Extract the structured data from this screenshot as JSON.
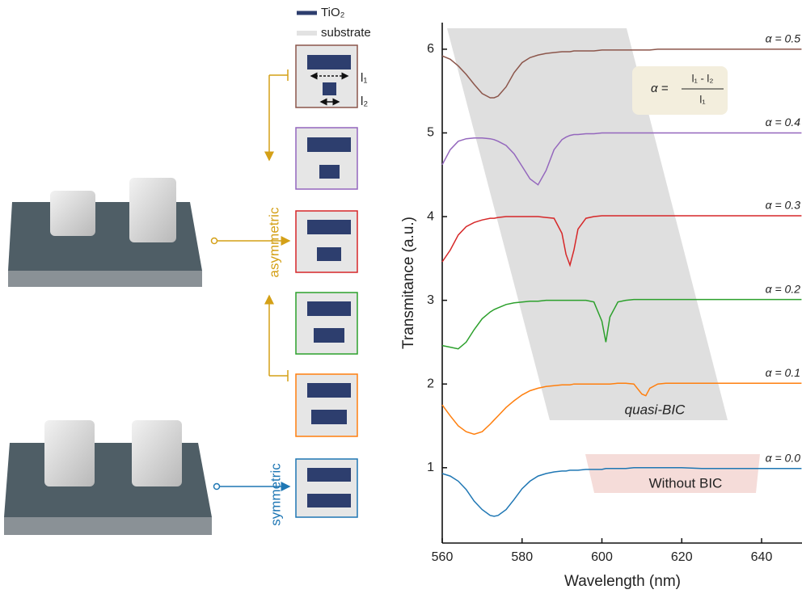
{
  "legend": {
    "tio2": "TiO₂",
    "substrate": "substrate"
  },
  "labels": {
    "asymmetric": "asymmetric",
    "symmetric": "symmetric",
    "l1": "l₁",
    "l2": "l₂"
  },
  "chart_data": {
    "type": "line",
    "x_label": "Wavelength (nm)",
    "y_label": "Transmitance (a.u.)",
    "annotations": {
      "quasi_bic": "quasi-BIC",
      "without_bic": "Without BIC",
      "formula_lhs": "α =",
      "formula_numerator": "l₁ - l₂",
      "formula_denominator": "l₁"
    },
    "xlim": [
      560,
      650
    ],
    "ylim": [
      0.1,
      6.25
    ],
    "xticks": [
      560,
      580,
      600,
      620,
      640
    ],
    "yticks": [
      1,
      2,
      3,
      4,
      5,
      6
    ],
    "x": [
      560,
      562,
      564,
      566,
      568,
      570,
      572,
      573,
      574,
      576,
      578,
      580,
      582,
      584,
      586,
      588,
      590,
      591,
      592,
      593,
      594,
      596,
      598,
      600,
      601,
      602,
      604,
      606,
      608,
      610,
      611,
      612,
      614,
      616,
      620,
      625,
      630,
      635,
      640,
      645,
      650
    ],
    "series": [
      {
        "name": "α = 0.0",
        "color": "#1f77b4",
        "values": [
          0.93,
          0.9,
          0.84,
          0.74,
          0.6,
          0.5,
          0.43,
          0.42,
          0.43,
          0.5,
          0.62,
          0.75,
          0.84,
          0.9,
          0.93,
          0.95,
          0.96,
          0.96,
          0.97,
          0.97,
          0.97,
          0.98,
          0.98,
          0.98,
          0.99,
          0.99,
          0.99,
          0.99,
          1.0,
          1.0,
          1.0,
          1.0,
          1.0,
          1.0,
          1.0,
          0.99,
          0.99,
          0.99,
          0.99,
          0.99,
          0.99
        ]
      },
      {
        "name": "α = 0.1",
        "color": "#ff7f0e",
        "values": [
          1.75,
          1.62,
          1.5,
          1.43,
          1.4,
          1.43,
          1.52,
          1.57,
          1.62,
          1.72,
          1.8,
          1.87,
          1.92,
          1.95,
          1.97,
          1.98,
          1.99,
          1.99,
          1.99,
          2.0,
          2.0,
          2.0,
          2.0,
          2.0,
          2.0,
          2.0,
          2.01,
          2.01,
          2.0,
          1.88,
          1.86,
          1.95,
          2.0,
          2.01,
          2.01,
          2.01,
          2.01,
          2.01,
          2.01,
          2.01,
          2.01
        ]
      },
      {
        "name": "α = 0.2",
        "color": "#2ca02c",
        "values": [
          2.46,
          2.44,
          2.42,
          2.5,
          2.65,
          2.78,
          2.86,
          2.89,
          2.91,
          2.95,
          2.97,
          2.98,
          2.99,
          2.99,
          3.0,
          3.0,
          3.0,
          3.0,
          3.0,
          3.0,
          3.0,
          3.0,
          2.98,
          2.75,
          2.5,
          2.8,
          2.98,
          3.0,
          3.01,
          3.01,
          3.01,
          3.01,
          3.01,
          3.01,
          3.01,
          3.01,
          3.01,
          3.01,
          3.01,
          3.01,
          3.01
        ]
      },
      {
        "name": "α = 0.3",
        "color": "#d62728",
        "values": [
          3.46,
          3.6,
          3.78,
          3.88,
          3.93,
          3.96,
          3.98,
          3.98,
          3.99,
          4.0,
          4.0,
          4.0,
          4.0,
          4.0,
          3.99,
          3.98,
          3.8,
          3.55,
          3.42,
          3.6,
          3.85,
          3.98,
          4.0,
          4.01,
          4.01,
          4.01,
          4.01,
          4.01,
          4.01,
          4.01,
          4.01,
          4.01,
          4.01,
          4.01,
          4.01,
          4.01,
          4.01,
          4.01,
          4.01,
          4.01,
          4.01
        ]
      },
      {
        "name": "α = 0.4",
        "color": "#9467bd",
        "values": [
          4.62,
          4.8,
          4.9,
          4.93,
          4.94,
          4.94,
          4.93,
          4.92,
          4.9,
          4.85,
          4.75,
          4.6,
          4.45,
          4.38,
          4.55,
          4.8,
          4.92,
          4.95,
          4.97,
          4.98,
          4.98,
          4.99,
          4.99,
          5.0,
          5.0,
          5.0,
          5.0,
          5.0,
          5.0,
          5.0,
          5.0,
          5.0,
          5.0,
          5.0,
          5.0,
          5.0,
          5.0,
          5.0,
          5.0,
          5.0,
          5.0
        ]
      },
      {
        "name": "α = 0.5",
        "color": "#8c564b",
        "values": [
          5.92,
          5.88,
          5.8,
          5.7,
          5.58,
          5.47,
          5.42,
          5.42,
          5.44,
          5.55,
          5.72,
          5.84,
          5.9,
          5.93,
          5.95,
          5.96,
          5.97,
          5.97,
          5.97,
          5.98,
          5.98,
          5.98,
          5.98,
          5.99,
          5.99,
          5.99,
          5.99,
          5.99,
          5.99,
          5.99,
          5.99,
          5.99,
          6.0,
          6.0,
          6.0,
          6.0,
          6.0,
          6.0,
          6.0,
          6.0,
          6.0
        ]
      }
    ]
  }
}
